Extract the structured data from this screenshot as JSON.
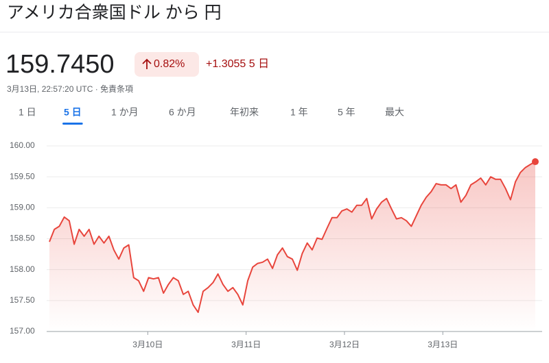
{
  "header": {
    "title": "アメリカ合衆国ドル から 円",
    "price": "159.7450",
    "change_percent": "0.82%",
    "change_abs": "+1.3055 5 日",
    "timestamp": "3月13日, 22:57:20 UTC · 免責条項",
    "tabs": [
      "1 日",
      "5 日",
      "1 か月",
      "6 か月",
      "年初来",
      "1 年",
      "5 年",
      "最大"
    ],
    "active_tab": 1
  },
  "chart_data": {
    "type": "line",
    "color": "#e8453c",
    "values": [
      158.45,
      158.65,
      158.7,
      158.85,
      158.79,
      158.41,
      158.65,
      158.54,
      158.65,
      158.41,
      158.54,
      158.43,
      158.54,
      158.32,
      158.17,
      158.35,
      158.4,
      157.87,
      157.82,
      157.65,
      157.87,
      157.85,
      157.87,
      157.62,
      157.76,
      157.87,
      157.82,
      157.6,
      157.65,
      157.43,
      157.31,
      157.65,
      157.71,
      157.79,
      157.93,
      157.76,
      157.65,
      157.71,
      157.6,
      157.43,
      157.82,
      158.04,
      158.1,
      158.12,
      158.17,
      158.02,
      158.24,
      158.35,
      158.21,
      158.17,
      157.99,
      158.26,
      158.43,
      158.32,
      158.51,
      158.49,
      158.67,
      158.84,
      158.84,
      158.95,
      158.98,
      158.93,
      159.04,
      159.04,
      159.15,
      158.82,
      158.98,
      159.09,
      159.15,
      158.98,
      158.82,
      158.84,
      158.79,
      158.7,
      158.87,
      159.04,
      159.17,
      159.26,
      159.39,
      159.37,
      159.37,
      159.31,
      159.37,
      159.09,
      159.2,
      159.37,
      159.42,
      159.48,
      159.37,
      159.5,
      159.46,
      159.46,
      159.31,
      159.13,
      159.42,
      159.57,
      159.65,
      159.7,
      159.745
    ],
    "xlim": [
      9.0,
      13.94
    ],
    "xticks": [
      {
        "value": 10,
        "label": "3月10日"
      },
      {
        "value": 11,
        "label": "3月11日"
      },
      {
        "value": 12,
        "label": "3月12日"
      },
      {
        "value": 13,
        "label": "3月13日"
      }
    ],
    "ylim": [
      157,
      160
    ],
    "yticks": [
      {
        "value": 157,
        "label": "157.00"
      },
      {
        "value": 157.5,
        "label": "157.50"
      },
      {
        "value": 158,
        "label": "158.00"
      },
      {
        "value": 158.5,
        "label": "158.50"
      },
      {
        "value": 159,
        "label": "159.00"
      },
      {
        "value": 159.5,
        "label": "159.50"
      },
      {
        "value": 160,
        "label": "160.00"
      }
    ],
    "grid": true
  }
}
